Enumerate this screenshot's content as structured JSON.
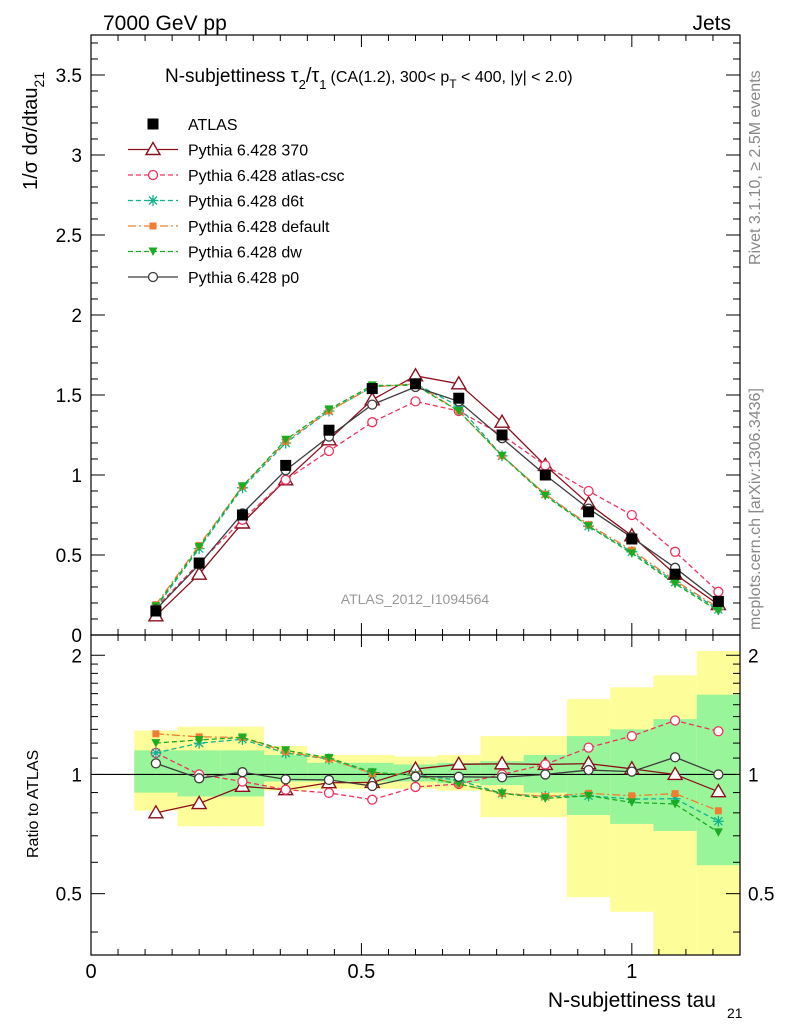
{
  "header": {
    "left": "7000 GeV pp",
    "right": "Jets"
  },
  "side_text": {
    "rivet": "Rivet 3.1.10, ≥ 2.5M events",
    "mcplots": "mcplots.cern.ch [arXiv:1306.3436]"
  },
  "chart_data": {
    "type": "line",
    "title": "N-subjettiness τ₂/τ₁ (CA(1.2), 300< p_T < 400, |y| < 2.0)",
    "title_parts": {
      "main": "N-subjettiness",
      "tau2": "τ",
      "sub2": "2",
      "slash": "/",
      "tau1": "τ",
      "sub1": "1",
      "cut1": "(CA(1.2), 300< p",
      "subT": "T",
      "cut2": " < 400, |y| < 2.0)"
    },
    "watermark": "ATLAS_2012_I1094564",
    "xlabel": "N-subjettiness tau",
    "xlabel_sub": "21",
    "ylabel": "1/σ dσ/dtau",
    "ylabel_sub": "21",
    "ratio_ylabel": "Ratio to ATLAS",
    "xlim": [
      0,
      1.2
    ],
    "ylim": [
      0,
      3.75
    ],
    "ratio_ylim": [
      0.35,
      2.25
    ],
    "log_ratio_axis": true,
    "x_ticks": [
      "0",
      "0.5",
      "1"
    ],
    "y_ticks": [
      "0",
      "0.5",
      "1",
      "1.5",
      "2",
      "2.5",
      "3",
      "3.5"
    ],
    "ratio_ticks": [
      "0.5",
      "1",
      "2"
    ],
    "legend_position": "top-left",
    "x": [
      0.12,
      0.2,
      0.28,
      0.36,
      0.44,
      0.52,
      0.6,
      0.68,
      0.76,
      0.84,
      0.92,
      1.0,
      1.08,
      1.16
    ],
    "data": {
      "name": "ATLAS",
      "values": [
        0.15,
        0.45,
        0.75,
        1.06,
        1.28,
        1.54,
        1.57,
        1.48,
        1.25,
        1.0,
        0.77,
        0.6,
        0.38,
        0.21
      ]
    },
    "uncertainty_band": {
      "inner": [
        [
          0.9,
          1.15
        ],
        [
          0.88,
          1.15
        ],
        [
          0.88,
          1.15
        ],
        [
          0.96,
          1.12
        ],
        [
          0.96,
          1.07
        ],
        [
          0.96,
          1.07
        ],
        [
          0.96,
          1.06
        ],
        [
          0.95,
          1.07
        ],
        [
          0.94,
          1.08
        ],
        [
          0.9,
          1.12
        ],
        [
          0.79,
          1.25
        ],
        [
          0.75,
          1.3
        ],
        [
          0.72,
          1.38
        ],
        [
          0.59,
          1.59
        ]
      ],
      "outer": [
        [
          0.81,
          1.29
        ],
        [
          0.74,
          1.32
        ],
        [
          0.74,
          1.32
        ],
        [
          0.91,
          1.18
        ],
        [
          0.92,
          1.12
        ],
        [
          0.92,
          1.12
        ],
        [
          0.92,
          1.11
        ],
        [
          0.91,
          1.12
        ],
        [
          0.78,
          1.25
        ],
        [
          0.78,
          1.25
        ],
        [
          0.49,
          1.55
        ],
        [
          0.45,
          1.66
        ],
        [
          0.35,
          1.78
        ],
        [
          0.35,
          2.05
        ]
      ],
      "inner_color": "#99f599",
      "outer_color": "#fdfd99"
    },
    "series": [
      {
        "name": "Pythia 6.428 370",
        "color": "#8b0f1c",
        "dash": "",
        "marker": "triangle-open",
        "values": [
          0.12,
          0.38,
          0.7,
          0.97,
          1.22,
          1.47,
          1.62,
          1.57,
          1.33,
          1.06,
          0.82,
          0.62,
          0.38,
          0.19
        ]
      },
      {
        "name": "Pythia 6.428 atlas-csc",
        "color": "#ee3360",
        "dash": "5,3",
        "marker": "circle-open",
        "values": [
          0.17,
          0.45,
          0.72,
          0.97,
          1.15,
          1.33,
          1.46,
          1.4,
          1.25,
          1.06,
          0.9,
          0.75,
          0.52,
          0.27
        ]
      },
      {
        "name": "Pythia 6.428 d6t",
        "color": "#11b38c",
        "dash": "5,3",
        "marker": "star",
        "values": [
          0.17,
          0.54,
          0.92,
          1.2,
          1.4,
          1.55,
          1.57,
          1.43,
          1.12,
          0.88,
          0.68,
          0.52,
          0.33,
          0.16
        ]
      },
      {
        "name": "Pythia 6.428 default",
        "color": "#f07d33",
        "dash": "8,3,2,3",
        "marker": "square",
        "values": [
          0.19,
          0.56,
          0.93,
          1.21,
          1.4,
          1.55,
          1.57,
          1.4,
          1.12,
          0.88,
          0.69,
          0.53,
          0.34,
          0.17
        ]
      },
      {
        "name": "Pythia 6.428 dw",
        "color": "#1cab24",
        "dash": "5,3",
        "marker": "triangle-down",
        "values": [
          0.18,
          0.55,
          0.93,
          1.22,
          1.41,
          1.56,
          1.56,
          1.4,
          1.12,
          0.87,
          0.68,
          0.51,
          0.32,
          0.15
        ]
      },
      {
        "name": "Pythia 6.428 p0",
        "color": "#3c3c3c",
        "dash": "",
        "marker": "circle-open",
        "values": [
          0.16,
          0.44,
          0.76,
          1.03,
          1.24,
          1.44,
          1.55,
          1.46,
          1.23,
          1.0,
          0.79,
          0.61,
          0.42,
          0.21
        ]
      }
    ]
  }
}
